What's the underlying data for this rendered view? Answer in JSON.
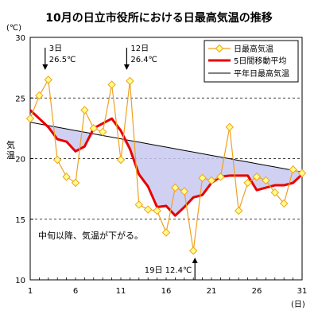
{
  "chart_data": {
    "type": "line",
    "title": "10月の日立市役所における日最高気温の推移",
    "ylabel": "気温",
    "yunit": "(℃)",
    "xunit": "(日)",
    "xlim": [
      1,
      31
    ],
    "ylim": [
      10,
      30
    ],
    "x_ticks": [
      1,
      6,
      11,
      16,
      21,
      26,
      31
    ],
    "y_ticks": [
      10,
      15,
      20,
      25,
      30
    ],
    "gridlines_y": [
      15,
      20,
      25
    ],
    "legend_position": "top-right",
    "x": [
      1,
      2,
      3,
      4,
      5,
      6,
      7,
      8,
      9,
      10,
      11,
      12,
      13,
      14,
      15,
      16,
      17,
      18,
      19,
      20,
      21,
      22,
      23,
      24,
      25,
      26,
      27,
      28,
      29,
      30,
      31
    ],
    "series": [
      {
        "name": "日最高気温",
        "color": "#f0a020",
        "marker_fill": "#ffff88",
        "values": [
          23.3,
          25.2,
          26.5,
          19.9,
          18.5,
          18.0,
          24.0,
          22.5,
          22.2,
          26.1,
          19.9,
          26.4,
          16.2,
          15.8,
          15.7,
          13.9,
          17.6,
          17.3,
          12.4,
          18.4,
          18.2,
          18.5,
          22.6,
          15.7,
          18.0,
          18.5,
          18.2,
          17.2,
          16.3,
          19.1,
          18.8
        ]
      },
      {
        "name": "5日間移動平均",
        "color": "#e80000",
        "values": [
          24.0,
          23.3,
          22.6,
          21.6,
          21.4,
          20.6,
          21.0,
          22.5,
          22.9,
          23.3,
          22.3,
          20.8,
          18.7,
          17.7,
          16.0,
          16.1,
          15.3,
          16.0,
          16.8,
          17.0,
          18.0,
          18.5,
          18.6,
          18.6,
          18.6,
          17.4,
          17.6,
          17.8,
          17.8,
          18.0,
          18.7
        ]
      },
      {
        "name": "平年日最高気温",
        "color": "#000000",
        "values": [
          23.0,
          22.86,
          22.72,
          22.59,
          22.45,
          22.31,
          22.18,
          22.04,
          21.9,
          21.77,
          21.63,
          21.49,
          21.36,
          21.22,
          21.08,
          20.95,
          20.81,
          20.67,
          20.54,
          20.4,
          20.26,
          20.13,
          19.99,
          19.85,
          19.72,
          19.58,
          19.44,
          19.31,
          19.17,
          19.03,
          18.9
        ]
      }
    ],
    "annotations": [
      {
        "day": "3日",
        "value": "26.5℃",
        "x": 3,
        "direction": "down"
      },
      {
        "day": "12日",
        "value": "26.4℃",
        "x": 12,
        "direction": "down"
      },
      {
        "day": "19日",
        "value": "12.4℃",
        "x": 19,
        "direction": "up"
      }
    ],
    "note": "中旬以降、気温が下がる。"
  }
}
